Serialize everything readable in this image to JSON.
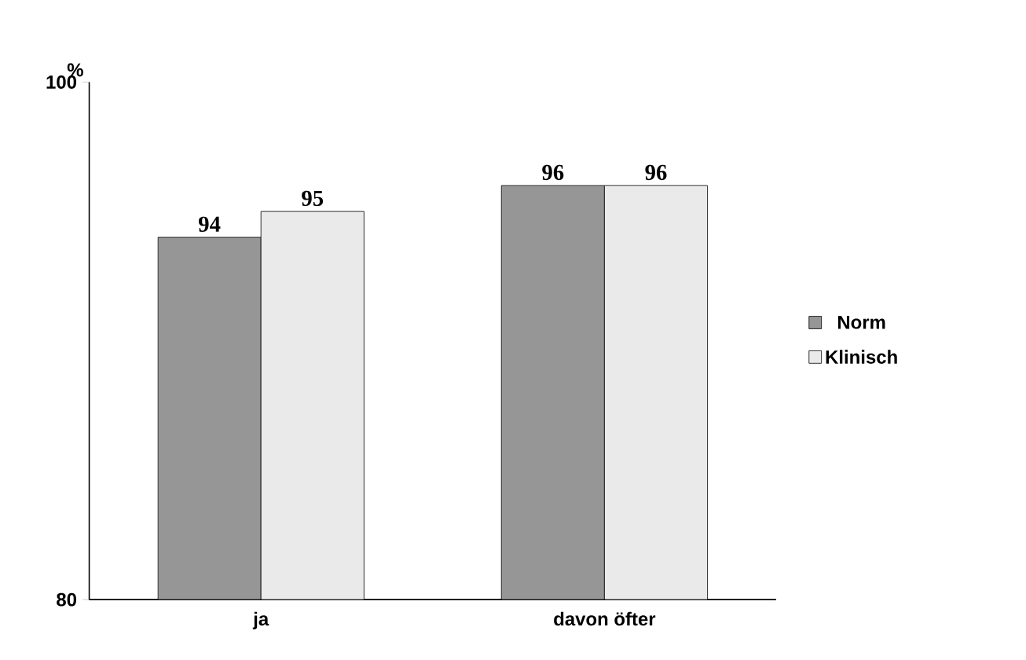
{
  "chart_data": {
    "type": "bar",
    "ylabel": "%",
    "categories": [
      "ja",
      "davon öfter"
    ],
    "series": [
      {
        "name": "Norm",
        "color": "#969696",
        "values": [
          94,
          96
        ]
      },
      {
        "name": "Klinisch",
        "color": "#eaeaea",
        "values": [
          95,
          96
        ]
      }
    ],
    "ylim": [
      80,
      100
    ],
    "yticks": [
      80,
      100
    ],
    "data_labels": true,
    "legend": "right",
    "grid": false
  }
}
